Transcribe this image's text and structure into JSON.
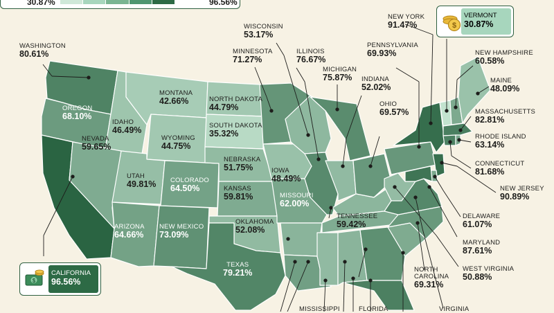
{
  "legend": {
    "min": "30.87%",
    "max": "96.56%",
    "colors": [
      "#cfe8d8",
      "#a7d6bd",
      "#79b592",
      "#4f9670",
      "#2d6a45"
    ]
  },
  "colors": {
    "background": "#f7f2e4",
    "border": "#ffffff",
    "scale_light": "#c2e3cf",
    "scale_dark": "#2a6442"
  },
  "states": {
    "WA": {
      "name": "WASHINGTON",
      "value": "80.61%"
    },
    "OR": {
      "name": "OREGON",
      "value": "68.10%"
    },
    "CA": {
      "name": "CALIFORNIA",
      "value": "96.56%"
    },
    "ID": {
      "name": "IDAHO",
      "value": "46.49%"
    },
    "NV": {
      "name": "NEVADA",
      "value": "59.65%"
    },
    "MT": {
      "name": "MONTANA",
      "value": "42.66%"
    },
    "WY": {
      "name": "WYOMING",
      "value": "44.75%"
    },
    "UT": {
      "name": "UTAH",
      "value": "49.81%"
    },
    "AZ": {
      "name": "ARIZONA",
      "value": "64.66%"
    },
    "CO": {
      "name": "COLORADO",
      "value": "64.50%"
    },
    "NM": {
      "name": "NEW MEXICO",
      "value": "73.09%"
    },
    "ND": {
      "name": "NORTH DAKOTA",
      "value": "44.79%"
    },
    "SD": {
      "name": "SOUTH DAKOTA",
      "value": "35.32%"
    },
    "NE": {
      "name": "NEBRASKA",
      "value": "51.75%"
    },
    "KS": {
      "name": "KANSAS",
      "value": "59.81%"
    },
    "OK": {
      "name": "OKLAHOMA",
      "value": "52.08%"
    },
    "TX": {
      "name": "TEXAS",
      "value": "79.21%"
    },
    "MN": {
      "name": "MINNESOTA",
      "value": "71.27%"
    },
    "IA": {
      "name": "IOWA",
      "value": "48.49%"
    },
    "MO": {
      "name": "MISSOURI",
      "value": "62.00%"
    },
    "WI": {
      "name": "WISCONSIN",
      "value": "53.17%"
    },
    "IL": {
      "name": "ILLINOIS",
      "value": "76.67%"
    },
    "MI": {
      "name": "MICHIGAN",
      "value": "75.87%"
    },
    "IN": {
      "name": "INDIANA",
      "value": "52.02%"
    },
    "OH": {
      "name": "OHIO",
      "value": "69.57%"
    },
    "TN": {
      "name": "TENNESSEE",
      "value": "59.42%"
    },
    "PA": {
      "name": "PENNSYLVANIA",
      "value": "69.93%"
    },
    "NY": {
      "name": "NEW YORK",
      "value": "91.47%"
    },
    "VT": {
      "name": "VERMONT",
      "value": "30.87%"
    },
    "NH": {
      "name": "NEW HAMPSHIRE",
      "value": "60.58%"
    },
    "ME": {
      "name": "MAINE",
      "value": "48.09%"
    },
    "MA": {
      "name": "MASSACHUSETTS",
      "value": "82.81%"
    },
    "RI": {
      "name": "RHODE ISLAND",
      "value": "63.14%"
    },
    "CT": {
      "name": "CONNECTICUT",
      "value": "81.68%"
    },
    "NJ": {
      "name": "NEW JERSEY",
      "value": "90.89%"
    },
    "DE": {
      "name": "DELAWARE",
      "value": "61.07%"
    },
    "MD": {
      "name": "MARYLAND",
      "value": "87.61%"
    },
    "WV": {
      "name": "WEST VIRGINIA",
      "value": "50.88%"
    },
    "NC": {
      "name": "NORTH CAROLINA",
      "value": "69.31%"
    },
    "MS": {
      "name": "MISSISSIPPI",
      "value": ""
    },
    "FL": {
      "name": "FLORIDA",
      "value": ""
    },
    "VA": {
      "name": "VIRGINIA",
      "value": ""
    }
  },
  "fills": {
    "WA": 80.61,
    "OR": 68.1,
    "CA": 96.56,
    "ID": 46.49,
    "NV": 59.65,
    "MT": 42.66,
    "WY": 44.75,
    "UT": 49.81,
    "AZ": 64.66,
    "CO": 64.5,
    "NM": 73.09,
    "ND": 44.79,
    "SD": 35.32,
    "NE": 51.75,
    "KS": 59.81,
    "OK": 52.08,
    "TX": 79.21,
    "MN": 71.27,
    "IA": 48.49,
    "MO": 62.0,
    "AR": 55.0,
    "LA": 66.0,
    "WI": 53.17,
    "IL": 76.67,
    "MI": 75.87,
    "IN": 52.02,
    "OH": 69.57,
    "KY": 54.0,
    "TN": 59.42,
    "MS": 52.0,
    "AL": 55.0,
    "GA": 74.0,
    "FL": 82.0,
    "SC": 60.0,
    "NC": 69.31,
    "VA": 78.0,
    "WV": 50.88,
    "PA": 69.93,
    "NY": 91.47,
    "VT": 30.87,
    "NH": 60.58,
    "ME": 48.09,
    "MA": 82.81,
    "RI": 63.14,
    "CT": 81.68,
    "NJ": 90.89,
    "DE": 61.07,
    "MD": 87.61
  }
}
